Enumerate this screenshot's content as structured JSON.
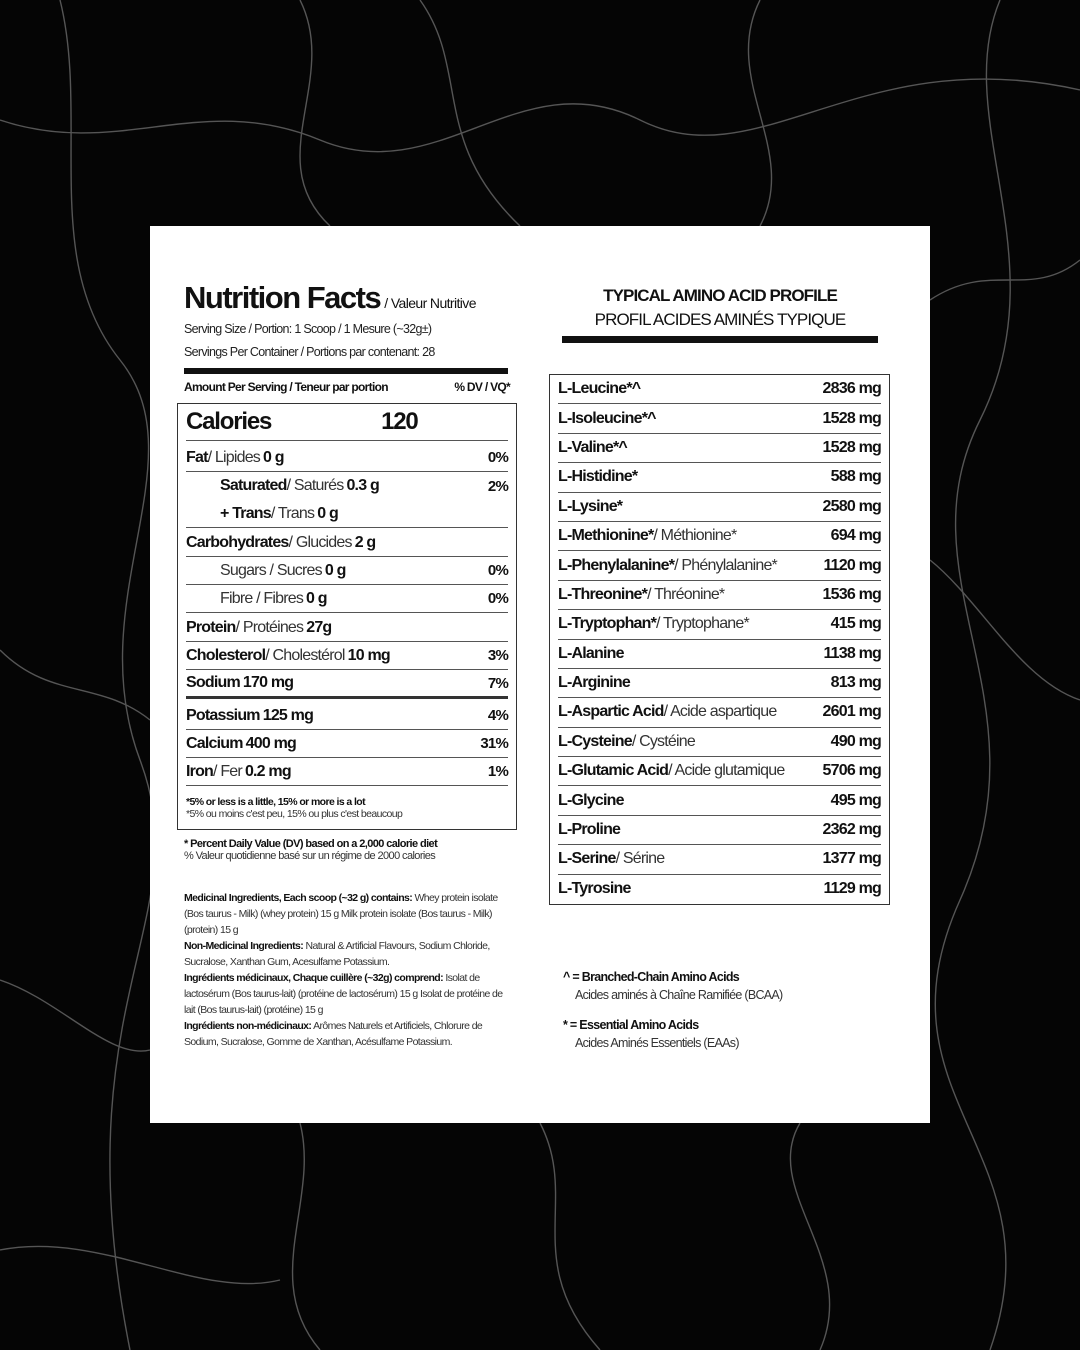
{
  "nutrition": {
    "title": "Nutrition Facts",
    "title_fr": "/ Valeur Nutritive",
    "serving_size": "Serving Size / Portion: 1 Scoop / 1 Mesure (~32g±)",
    "servings_per_container": "Servings Per Container / Portions par contenant: 28",
    "amount_per_serving": "Amount Per Serving / Teneur par portion",
    "dv_header": "% DV / VQ*",
    "calories_label": "Calories",
    "calories_value": "120",
    "rows": [
      {
        "bold": "Fat",
        "rest": " / Lipides ",
        "amt": "0 g",
        "pct": "0%"
      },
      {
        "bold": "Saturated",
        "rest": " / Saturés ",
        "amt": "0.3 g",
        "pct": "2%"
      },
      {
        "bold": "+ Trans",
        "rest": " / Trans ",
        "amt": "0 g",
        "pct": ""
      },
      {
        "bold": "Carbohydrates",
        "rest": " / Glucides ",
        "amt": "2 g",
        "pct": ""
      },
      {
        "bold": "",
        "rest": "Sugars / Sucres ",
        "amt": "0 g",
        "pct": "0%"
      },
      {
        "bold": "",
        "rest": "Fibre / Fibres ",
        "amt": "0 g",
        "pct": "0%"
      },
      {
        "bold": "Protein",
        "rest": " / Protéines ",
        "amt": "27g",
        "pct": ""
      },
      {
        "bold": "Cholesterol",
        "rest": " / Cholestérol ",
        "amt": "10 mg",
        "pct": "3%"
      },
      {
        "bold": "Sodium",
        "rest": " ",
        "amt": "170 mg",
        "pct": "7%"
      },
      {
        "bold": "Potassium",
        "rest": " ",
        "amt": "125 mg",
        "pct": "4%"
      },
      {
        "bold": "Calcium",
        "rest": " ",
        "amt": "400 mg",
        "pct": "31%"
      },
      {
        "bold": "Iron",
        "rest": " / Fer ",
        "amt": "0.2 mg",
        "pct": "1%"
      }
    ],
    "footnote_en": "*5% or less is a little, 15% or more is a lot",
    "footnote_fr": "*5% ou moins c'est peu, 15% ou plus c'est beaucoup",
    "dv_en": "* Percent Daily Value (DV) based on a 2,000 calorie diet",
    "dv_fr": "% Valeur quotidienne basé sur un régime de 2000 calories",
    "ingredients": [
      {
        "head": "Medicinal Ingredients, Each scoop (~32 g) contains:",
        "text": " Whey protein isolate (Bos taurus - Milk) (whey protein) 15 g Milk protein isolate (Bos taurus - Milk) (protein) 15 g"
      },
      {
        "head": "Non-Medicinal Ingredients:",
        "text": " Natural & Artificial Flavours, Sodium Chloride, Sucralose, Xanthan Gum, Acesulfame Potassium."
      },
      {
        "head": "Ingrédients médicinaux, Chaque cuillère (~32g) comprend:",
        "text": " Isolat de lactosérum (Bos taurus-lait) (protéine de lactosérum) 15 g Isolat de protéine de lait (Bos taurus-lait) (protéine) 15 g"
      },
      {
        "head": "Ingrédients non-médicinaux:",
        "text": " Arômes Naturels et Artificiels, Chlorure de Sodium, Sucralose, Gomme de Xanthan, Acésulfame Potassium."
      }
    ]
  },
  "amino": {
    "title": "TYPICAL AMINO ACID PROFILE",
    "title_fr": "PROFIL ACIDES AMINÉS TYPIQUE",
    "rows": [
      {
        "name": "L-Leucine*^",
        "fr": "",
        "value": "2836 mg"
      },
      {
        "name": "L-Isoleucine*^",
        "fr": "",
        "value": "1528 mg"
      },
      {
        "name": "L-Valine*^",
        "fr": "",
        "value": "1528 mg"
      },
      {
        "name": "L-Histidine*",
        "fr": "",
        "value": "588 mg"
      },
      {
        "name": "L-Lysine*",
        "fr": "",
        "value": "2580 mg"
      },
      {
        "name": "L-Methionine*",
        "fr": " / Méthionine*",
        "value": "694 mg"
      },
      {
        "name": "L-Phenylalanine*",
        "fr": " / Phénylalanine*",
        "value": "1120 mg"
      },
      {
        "name": "L-Threonine*",
        "fr": " / Thréonine*",
        "value": "1536 mg"
      },
      {
        "name": "L-Tryptophan*",
        "fr": " / Tryptophane*",
        "value": "415 mg"
      },
      {
        "name": "L-Alanine",
        "fr": "",
        "value": "1138 mg"
      },
      {
        "name": "L-Arginine",
        "fr": "",
        "value": "813 mg"
      },
      {
        "name": "L-Aspartic Acid",
        "fr": " / Acide aspartique",
        "value": "2601 mg"
      },
      {
        "name": "L-Cysteine",
        "fr": " / Cystéine",
        "value": "490 mg"
      },
      {
        "name": "L-Glutamic Acid",
        "fr": " / Acide glutamique",
        "value": "5706 mg"
      },
      {
        "name": "L-Glycine",
        "fr": "",
        "value": "495 mg"
      },
      {
        "name": "L-Proline",
        "fr": "",
        "value": "2362 mg"
      },
      {
        "name": "L-Serine",
        "fr": " / Sérine",
        "value": "1377 mg"
      },
      {
        "name": "L-Tyrosine",
        "fr": "",
        "value": "1129 mg"
      }
    ],
    "legend": [
      {
        "en": "^ = Branched-Chain Amino Acids",
        "fr": "Acides aminés à Chaîne Ramifiée (BCAA)"
      },
      {
        "en": "* = Essential Amino Acids",
        "fr": "Acides Aminés Essentiels (EAAs)"
      }
    ]
  }
}
